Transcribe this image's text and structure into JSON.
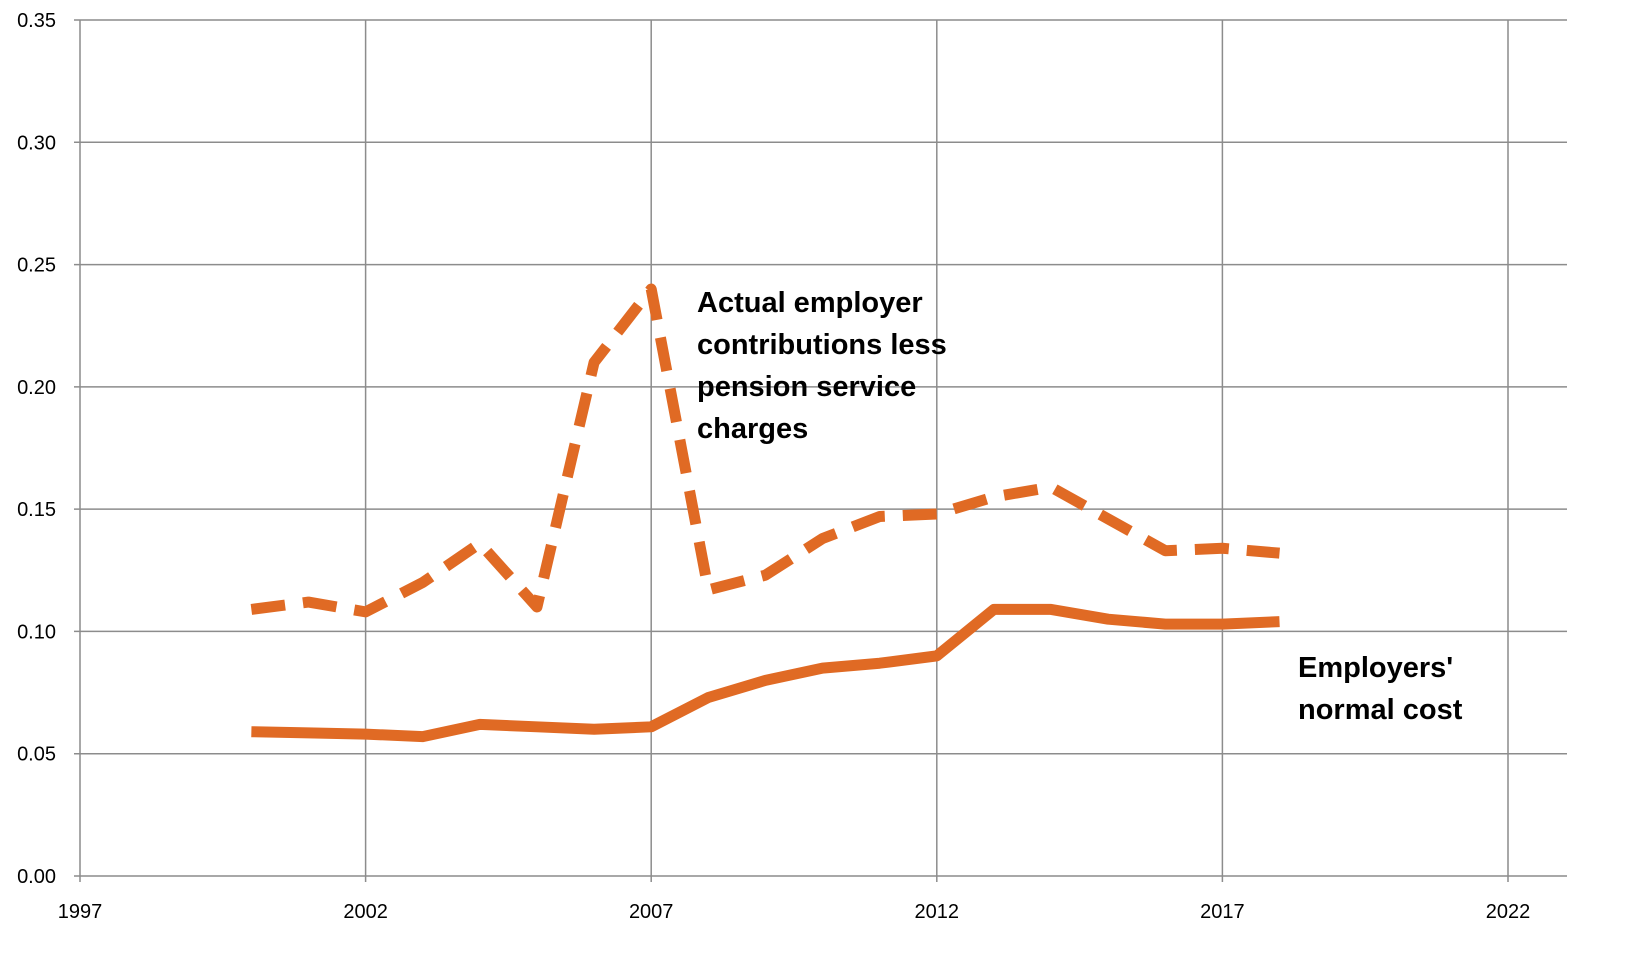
{
  "chart_data": {
    "type": "line",
    "x": [
      2000,
      2001,
      2002,
      2003,
      2004,
      2005,
      2006,
      2007,
      2008,
      2009,
      2010,
      2011,
      2012,
      2013,
      2014,
      2015,
      2016,
      2017,
      2018
    ],
    "series": [
      {
        "color": "#e06a24",
        "dash": true,
        "values": [
          0.109,
          0.112,
          0.108,
          0.12,
          0.136,
          0.11,
          0.21,
          0.24,
          0.117,
          0.123,
          0.138,
          0.147,
          0.148,
          0.155,
          0.159,
          0.146,
          0.133,
          0.134,
          0.132
        ]
      },
      {
        "color": "#e06a24",
        "dash": false,
        "values": [
          0.059,
          0.0585,
          0.058,
          0.057,
          0.062,
          0.061,
          0.06,
          0.061,
          0.073,
          0.08,
          0.085,
          0.087,
          0.09,
          0.109,
          0.109,
          0.105,
          0.103,
          0.103,
          0.104
        ]
      }
    ],
    "annotations": [
      {
        "lines": [
          "Actual employer",
          "contributions less",
          "pension service",
          "charges"
        ]
      },
      {
        "lines": [
          "Employers'",
          "normal cost"
        ]
      }
    ],
    "xlim": [
      1997,
      2022
    ],
    "xticks": [
      1997,
      2002,
      2007,
      2012,
      2017,
      2022
    ],
    "ylim": [
      0,
      0.35
    ],
    "yticks": [
      {
        "value": 0,
        "label": "0.00"
      },
      {
        "value": 0.05,
        "label": "0.05"
      },
      {
        "value": 0.1,
        "label": "0.10"
      },
      {
        "value": 0.15,
        "label": "0.15"
      },
      {
        "value": 0.2,
        "label": "0.20"
      },
      {
        "value": 0.25,
        "label": "0.25"
      },
      {
        "value": 0.3,
        "label": "0.30"
      },
      {
        "value": 0.35,
        "label": "0.35"
      }
    ],
    "grid": true
  }
}
